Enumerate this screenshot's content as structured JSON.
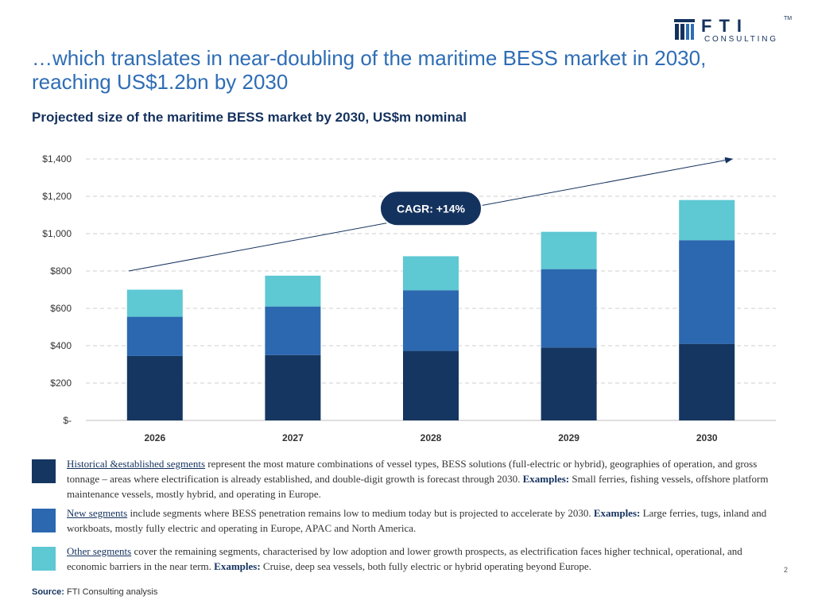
{
  "title": "…which translates in near-doubling of the maritime BESS market in 2030, reaching US$1.2bn by 2030",
  "logo": {
    "word": "FTI",
    "tm": "TM",
    "sub": "CONSULTING"
  },
  "colors": {
    "historical": "#153660",
    "new": "#2b68b0",
    "other": "#5ec8d3",
    "title": "#2e6db5",
    "dark": "#14325e"
  },
  "chart_data": {
    "type": "bar",
    "stacked": true,
    "title": "Projected size of the maritime BESS market by 2030, US$m nominal",
    "categories": [
      "2026",
      "2027",
      "2028",
      "2029",
      "2030"
    ],
    "series": [
      {
        "name": "Historical & established segments",
        "values": [
          345,
          350,
          372,
          390,
          410
        ]
      },
      {
        "name": "New segments",
        "values": [
          210,
          260,
          325,
          420,
          555
        ]
      },
      {
        "name": "Other segments",
        "values": [
          145,
          165,
          182,
          200,
          215
        ]
      }
    ],
    "ylim": [
      0,
      1400
    ],
    "yticks": [
      0,
      200,
      400,
      600,
      800,
      1000,
      1200,
      1400
    ],
    "ytick_labels": [
      "$-",
      "$200",
      "$400",
      "$600",
      "$800",
      "$1,000",
      "$1,200",
      "$1,400"
    ],
    "grid": true,
    "annotation": "CAGR: +14%",
    "trend_arrow": {
      "from": {
        "x": "2026",
        "y": 800
      },
      "to": {
        "x": "2030",
        "y": 1400
      }
    }
  },
  "legend": [
    {
      "name": "Historical &established segments",
      "text": "represent the most mature combinations of vessel types, BESS solutions (full-electric or hybrid), geographies of operation, and gross tonnage – areas where electrification is already established, and double-digit growth is forecast through 2030.",
      "examples_label": "Examples:",
      "examples": "Small ferries, fishing vessels, offshore platform maintenance vessels, mostly hybrid, and operating in Europe."
    },
    {
      "name": "New segments",
      "text": "include segments where BESS penetration remains low to medium today but is projected to accelerate by 2030.",
      "examples_label": "Examples:",
      "examples": "Large ferries, tugs, inland and workboats, mostly fully electric and operating in Europe, APAC and North America."
    },
    {
      "name": "Other segments",
      "text": "cover the remaining segments, characterised by low adoption and lower growth prospects, as electrification faces higher technical, operational, and economic barriers in the near term.",
      "examples_label": "Examples:",
      "examples": "Cruise, deep sea vessels, both fully electric or hybrid operating beyond Europe."
    }
  ],
  "source": {
    "label": "Source:",
    "text": "FTI Consulting analysis"
  },
  "page_number": "2"
}
